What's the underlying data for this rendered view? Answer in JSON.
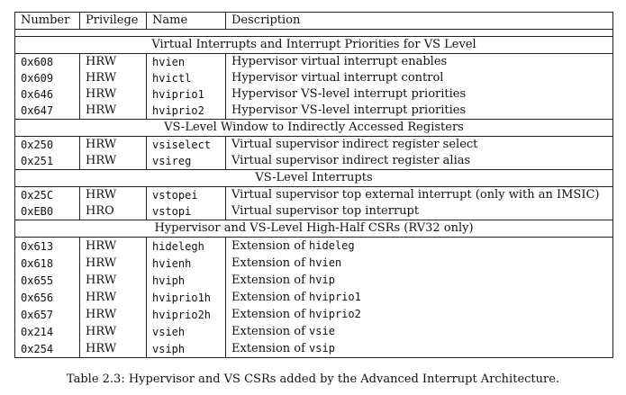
{
  "table": {
    "headers": [
      "Number",
      "Privilege",
      "Name",
      "Description"
    ],
    "sections": [
      {
        "title": "Virtual Interrupts and Interrupt Priorities for VS Level",
        "rows": [
          {
            "number": "0x608",
            "privilege": "HRW",
            "name": "hvien",
            "description": "Hypervisor virtual interrupt enables",
            "desc_code": ""
          },
          {
            "number": "0x609",
            "privilege": "HRW",
            "name": "hvictl",
            "description": "Hypervisor virtual interrupt control",
            "desc_code": ""
          },
          {
            "number": "0x646",
            "privilege": "HRW",
            "name": "hviprio1",
            "description": "Hypervisor VS-level interrupt priorities",
            "desc_code": ""
          },
          {
            "number": "0x647",
            "privilege": "HRW",
            "name": "hviprio2",
            "description": "Hypervisor VS-level interrupt priorities",
            "desc_code": ""
          }
        ]
      },
      {
        "title": "VS-Level Window to Indirectly Accessed Registers",
        "rows": [
          {
            "number": "0x250",
            "privilege": "HRW",
            "name": "vsiselect",
            "description": "Virtual supervisor indirect register select",
            "desc_code": ""
          },
          {
            "number": "0x251",
            "privilege": "HRW",
            "name": "vsireg",
            "description": "Virtual supervisor indirect register alias",
            "desc_code": ""
          }
        ]
      },
      {
        "title": "VS-Level Interrupts",
        "rows": [
          {
            "number": "0x25C",
            "privilege": "HRW",
            "name": "vstopei",
            "description": "Virtual supervisor top external interrupt (only with an IMSIC)",
            "desc_code": ""
          },
          {
            "number": "0xEB0",
            "privilege": "HRO",
            "name": "vstopi",
            "description": "Virtual supervisor top interrupt",
            "desc_code": ""
          }
        ]
      },
      {
        "title": "Hypervisor and VS-Level High-Half CSRs (RV32 only)",
        "rows": [
          {
            "number": "0x613",
            "privilege": "HRW",
            "name": "hidelegh",
            "description": "Extension of ",
            "desc_code": "hideleg"
          },
          {
            "number": "0x618",
            "privilege": "HRW",
            "name": "hvienh",
            "description": "Extension of ",
            "desc_code": "hvien"
          },
          {
            "number": "0x655",
            "privilege": "HRW",
            "name": "hviph",
            "description": "Extension of ",
            "desc_code": "hvip"
          },
          {
            "number": "0x656",
            "privilege": "HRW",
            "name": "hviprio1h",
            "description": "Extension of ",
            "desc_code": "hviprio1"
          },
          {
            "number": "0x657",
            "privilege": "HRW",
            "name": "hviprio2h",
            "description": "Extension of ",
            "desc_code": "hviprio2"
          },
          {
            "number": "0x214",
            "privilege": "HRW",
            "name": "vsieh",
            "description": "Extension of ",
            "desc_code": "vsie"
          },
          {
            "number": "0x254",
            "privilege": "HRW",
            "name": "vsiph",
            "description": "Extension of ",
            "desc_code": "vsip"
          }
        ]
      }
    ]
  },
  "caption": "Table 2.3: Hypervisor and VS CSRs added by the Advanced Interrupt Architecture."
}
